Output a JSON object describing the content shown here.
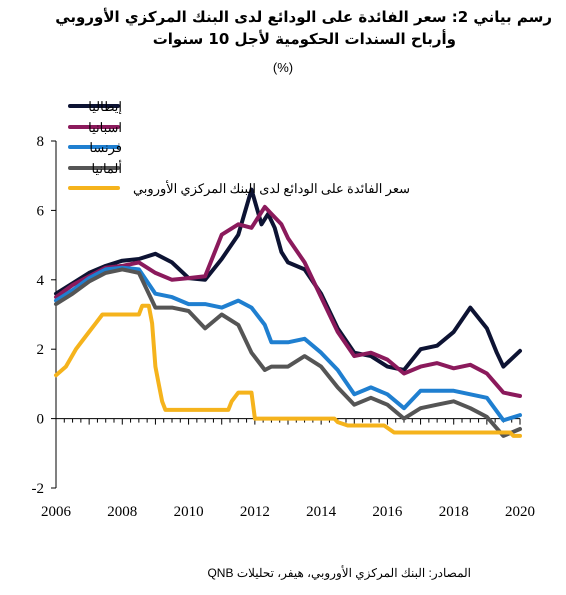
{
  "chart_data": {
    "type": "line",
    "title": "رسم بياني 2: سعر الفائدة على الودائع لدى البنك المركزي الأوروبي",
    "subtitle": "وأرباح السندات الحكومية لأجل 10 سنوات",
    "unit": "(%)",
    "xlabel": "",
    "ylabel": "",
    "xlim": [
      2006,
      2020
    ],
    "ylim": [
      -2,
      8
    ],
    "xticks": [
      "2006",
      "2008",
      "2010",
      "2012",
      "2014",
      "2016",
      "2018",
      "2020"
    ],
    "yticks": [
      "-2",
      "0",
      "2",
      "4",
      "6",
      "8"
    ],
    "grid": false,
    "legend_position": "top-left",
    "series": [
      {
        "name": "إيطاليا",
        "color": "#0d1333",
        "points": [
          [
            2006,
            3.6
          ],
          [
            2006.5,
            3.9
          ],
          [
            2007,
            4.2
          ],
          [
            2007.5,
            4.4
          ],
          [
            2008,
            4.55
          ],
          [
            2008.5,
            4.6
          ],
          [
            2009,
            4.75
          ],
          [
            2009.5,
            4.5
          ],
          [
            2010,
            4.05
          ],
          [
            2010.5,
            4.0
          ],
          [
            2011,
            4.6
          ],
          [
            2011.5,
            5.3
          ],
          [
            2011.9,
            6.6
          ],
          [
            2012.2,
            5.6
          ],
          [
            2012.4,
            5.9
          ],
          [
            2012.6,
            5.5
          ],
          [
            2012.8,
            4.8
          ],
          [
            2013,
            4.5
          ],
          [
            2013.5,
            4.3
          ],
          [
            2014,
            3.6
          ],
          [
            2014.5,
            2.6
          ],
          [
            2015,
            1.9
          ],
          [
            2015.5,
            1.8
          ],
          [
            2016,
            1.5
          ],
          [
            2016.5,
            1.4
          ],
          [
            2017,
            2.0
          ],
          [
            2017.5,
            2.1
          ],
          [
            2018,
            2.5
          ],
          [
            2018.5,
            3.2
          ],
          [
            2019,
            2.6
          ],
          [
            2019.3,
            1.9
          ],
          [
            2019.5,
            1.5
          ],
          [
            2020,
            1.95
          ]
        ]
      },
      {
        "name": "اسبانيا",
        "color": "#8b1a5c",
        "points": [
          [
            2006,
            3.5
          ],
          [
            2006.5,
            3.85
          ],
          [
            2007,
            4.1
          ],
          [
            2007.5,
            4.35
          ],
          [
            2008,
            4.4
          ],
          [
            2008.5,
            4.5
          ],
          [
            2009,
            4.2
          ],
          [
            2009.5,
            4.0
          ],
          [
            2010,
            4.05
          ],
          [
            2010.5,
            4.1
          ],
          [
            2011,
            5.3
          ],
          [
            2011.5,
            5.6
          ],
          [
            2011.9,
            5.5
          ],
          [
            2012.3,
            6.1
          ],
          [
            2012.5,
            5.9
          ],
          [
            2012.8,
            5.6
          ],
          [
            2013,
            5.2
          ],
          [
            2013.5,
            4.5
          ],
          [
            2014,
            3.5
          ],
          [
            2014.5,
            2.5
          ],
          [
            2015,
            1.8
          ],
          [
            2015.5,
            1.9
          ],
          [
            2016,
            1.7
          ],
          [
            2016.5,
            1.3
          ],
          [
            2017,
            1.5
          ],
          [
            2017.5,
            1.6
          ],
          [
            2018,
            1.45
          ],
          [
            2018.5,
            1.55
          ],
          [
            2019,
            1.3
          ],
          [
            2019.5,
            0.75
          ],
          [
            2020,
            0.65
          ]
        ]
      },
      {
        "name": "فرنسا",
        "color": "#1f7fd0",
        "points": [
          [
            2006,
            3.4
          ],
          [
            2006.5,
            3.7
          ],
          [
            2007,
            4.05
          ],
          [
            2007.5,
            4.3
          ],
          [
            2008,
            4.35
          ],
          [
            2008.5,
            4.3
          ],
          [
            2009,
            3.6
          ],
          [
            2009.5,
            3.5
          ],
          [
            2010,
            3.3
          ],
          [
            2010.5,
            3.3
          ],
          [
            2011,
            3.2
          ],
          [
            2011.5,
            3.4
          ],
          [
            2011.9,
            3.2
          ],
          [
            2012.3,
            2.7
          ],
          [
            2012.5,
            2.2
          ],
          [
            2012.8,
            2.2
          ],
          [
            2013,
            2.2
          ],
          [
            2013.5,
            2.3
          ],
          [
            2014,
            1.9
          ],
          [
            2014.5,
            1.4
          ],
          [
            2015,
            0.7
          ],
          [
            2015.5,
            0.9
          ],
          [
            2016,
            0.7
          ],
          [
            2016.5,
            0.3
          ],
          [
            2017,
            0.8
          ],
          [
            2017.5,
            0.8
          ],
          [
            2018,
            0.8
          ],
          [
            2018.5,
            0.7
          ],
          [
            2019,
            0.6
          ],
          [
            2019.5,
            -0.05
          ],
          [
            2020,
            0.1
          ]
        ]
      },
      {
        "name": "ألمانيا",
        "color": "#555555",
        "points": [
          [
            2006,
            3.3
          ],
          [
            2006.5,
            3.6
          ],
          [
            2007,
            3.95
          ],
          [
            2007.5,
            4.2
          ],
          [
            2008,
            4.3
          ],
          [
            2008.5,
            4.2
          ],
          [
            2009,
            3.2
          ],
          [
            2009.5,
            3.2
          ],
          [
            2010,
            3.1
          ],
          [
            2010.5,
            2.6
          ],
          [
            2011,
            3.0
          ],
          [
            2011.5,
            2.7
          ],
          [
            2011.9,
            1.9
          ],
          [
            2012.3,
            1.4
          ],
          [
            2012.5,
            1.5
          ],
          [
            2012.8,
            1.5
          ],
          [
            2013,
            1.5
          ],
          [
            2013.5,
            1.8
          ],
          [
            2014,
            1.5
          ],
          [
            2014.5,
            0.9
          ],
          [
            2015,
            0.4
          ],
          [
            2015.5,
            0.6
          ],
          [
            2016,
            0.4
          ],
          [
            2016.5,
            0.0
          ],
          [
            2017,
            0.3
          ],
          [
            2017.5,
            0.4
          ],
          [
            2018,
            0.5
          ],
          [
            2018.5,
            0.3
          ],
          [
            2019,
            0.05
          ],
          [
            2019.5,
            -0.5
          ],
          [
            2020,
            -0.3
          ]
        ]
      },
      {
        "name": "سعر الفائدة على الودائع لدى البنك المركزي الأوروبي",
        "color": "#f5b31c",
        "points": [
          [
            2006,
            1.25
          ],
          [
            2006.3,
            1.5
          ],
          [
            2006.6,
            2.0
          ],
          [
            2006.8,
            2.25
          ],
          [
            2007,
            2.5
          ],
          [
            2007.2,
            2.75
          ],
          [
            2007.4,
            3.0
          ],
          [
            2008.5,
            3.0
          ],
          [
            2008.6,
            3.25
          ],
          [
            2008.8,
            3.25
          ],
          [
            2008.9,
            2.75
          ],
          [
            2009,
            1.5
          ],
          [
            2009.1,
            1.0
          ],
          [
            2009.2,
            0.5
          ],
          [
            2009.3,
            0.25
          ],
          [
            2011.2,
            0.25
          ],
          [
            2011.3,
            0.5
          ],
          [
            2011.5,
            0.75
          ],
          [
            2011.9,
            0.75
          ],
          [
            2012,
            0.0
          ],
          [
            2014.4,
            0.0
          ],
          [
            2014.5,
            -0.1
          ],
          [
            2014.8,
            -0.2
          ],
          [
            2015.9,
            -0.2
          ],
          [
            2016.2,
            -0.4
          ],
          [
            2019.7,
            -0.4
          ],
          [
            2019.8,
            -0.5
          ],
          [
            2020,
            -0.5
          ]
        ]
      }
    ]
  },
  "source": "المصادر: البنك المركزي الأوروبي، هيفر، تحليلات QNB"
}
